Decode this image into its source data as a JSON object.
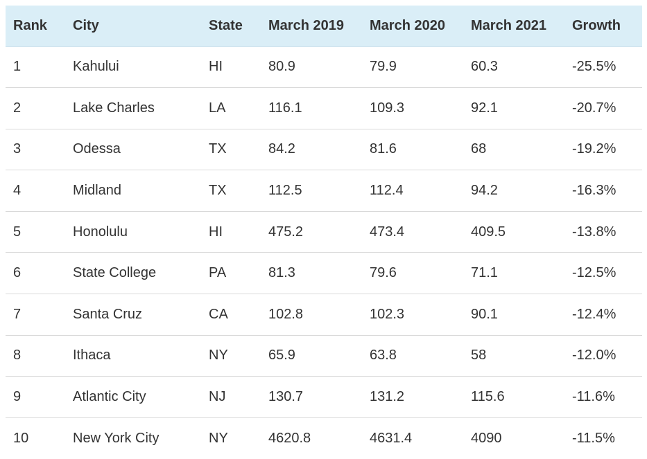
{
  "table": {
    "headers": [
      "Rank",
      "City",
      "State",
      "March 2019",
      "March 2020",
      "March 2021",
      "Growth"
    ],
    "rows": [
      [
        "1",
        "Kahului",
        "HI",
        "80.9",
        "79.9",
        "60.3",
        "-25.5%"
      ],
      [
        "2",
        "Lake Charles",
        "LA",
        "116.1",
        "109.3",
        "92.1",
        "-20.7%"
      ],
      [
        "3",
        "Odessa",
        "TX",
        "84.2",
        "81.6",
        "68",
        "-19.2%"
      ],
      [
        "4",
        "Midland",
        "TX",
        "112.5",
        "112.4",
        "94.2",
        "-16.3%"
      ],
      [
        "5",
        "Honolulu",
        "HI",
        "475.2",
        "473.4",
        "409.5",
        "-13.8%"
      ],
      [
        "6",
        "State College",
        "PA",
        "81.3",
        "79.6",
        "71.1",
        "-12.5%"
      ],
      [
        "7",
        "Santa Cruz",
        "CA",
        "102.8",
        "102.3",
        "90.1",
        "-12.4%"
      ],
      [
        "8",
        "Ithaca",
        "NY",
        "65.9",
        "63.8",
        "58",
        "-12.0%"
      ],
      [
        "9",
        "Atlantic City",
        "NJ",
        "130.7",
        "131.2",
        "115.6",
        "-11.6%"
      ],
      [
        "10",
        "New York City",
        "NY",
        "4620.8",
        "4631.4",
        "4090",
        "-11.5%"
      ]
    ]
  },
  "colors": {
    "header_background": "#daeef7",
    "row_divider": "#d9d9d9",
    "text": "#333333"
  }
}
